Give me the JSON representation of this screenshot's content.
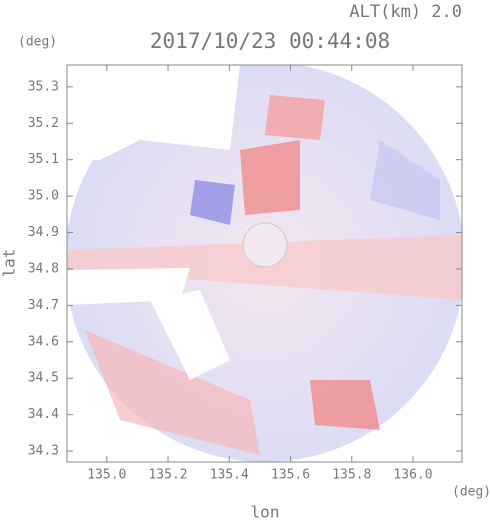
{
  "chart_data": {
    "type": "image",
    "title": "2017/10/23 00:44:08",
    "annotation": "ALT(km) 2.0",
    "x_label": "lon",
    "y_label": "lat",
    "x_unit": "(deg)",
    "y_unit": "(deg)",
    "xlim": [
      134.87,
      136.16
    ],
    "ylim": [
      34.27,
      35.36
    ],
    "xticks": [
      {
        "value": 135,
        "label": "135.0"
      },
      135.2,
      135.4,
      135.6,
      135.8,
      {
        "value": 136,
        "label": "136.0"
      }
    ],
    "yticks": [
      35.3,
      35.2,
      35.1,
      {
        "value": 35,
        "label": "35.0"
      },
      34.9,
      34.8,
      34.7,
      34.6,
      34.5,
      34.4,
      34.3
    ]
  }
}
